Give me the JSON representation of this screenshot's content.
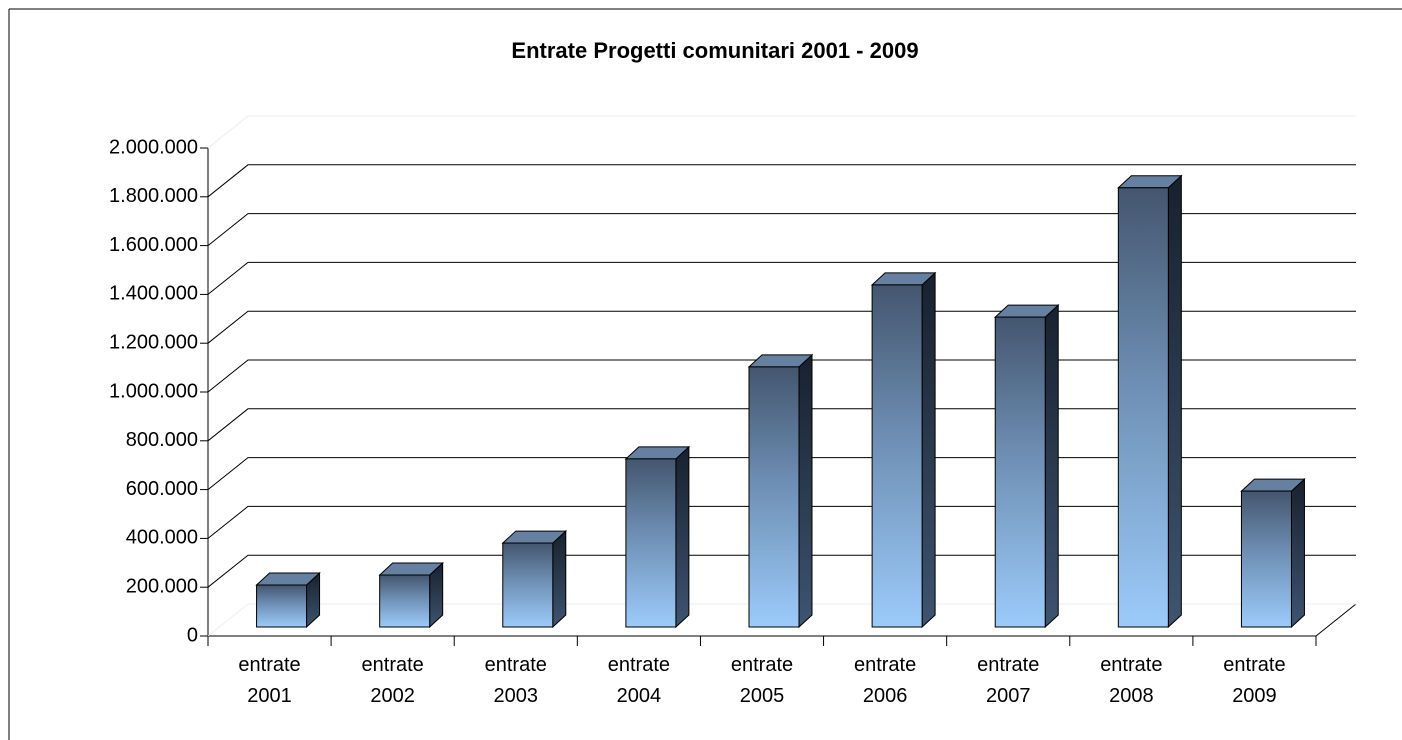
{
  "chart_data": {
    "type": "bar3d",
    "title": "Entrate Progetti comunitari 2001 - 2009",
    "categories": [
      "entrate 2001",
      "entrate 2002",
      "entrate 2003",
      "entrate 2004",
      "entrate 2005",
      "entrate 2006",
      "entrate 2007",
      "entrate 2008",
      "entrate 2009"
    ],
    "values": [
      172000,
      213000,
      344000,
      689000,
      1066000,
      1402000,
      1270000,
      1800000,
      557000
    ],
    "ylim": [
      0,
      2000000
    ],
    "yticks": [
      0,
      {
        "value": 200000,
        "label": "200.000"
      },
      {
        "value": 400000,
        "label": "400.000"
      },
      {
        "value": 600000,
        "label": "600.000"
      },
      {
        "value": 800000,
        "label": "800.000"
      },
      {
        "value": 1000000,
        "label": "1.000.000"
      },
      {
        "value": 1200000,
        "label": "1.200.000"
      },
      {
        "value": 1400000,
        "label": "1.400.000"
      },
      {
        "value": 1600000,
        "label": "1.600.000"
      },
      {
        "value": 1800000,
        "label": "1.800.000"
      },
      {
        "value": 2000000,
        "label": "2.000.000"
      }
    ],
    "grid": true
  }
}
